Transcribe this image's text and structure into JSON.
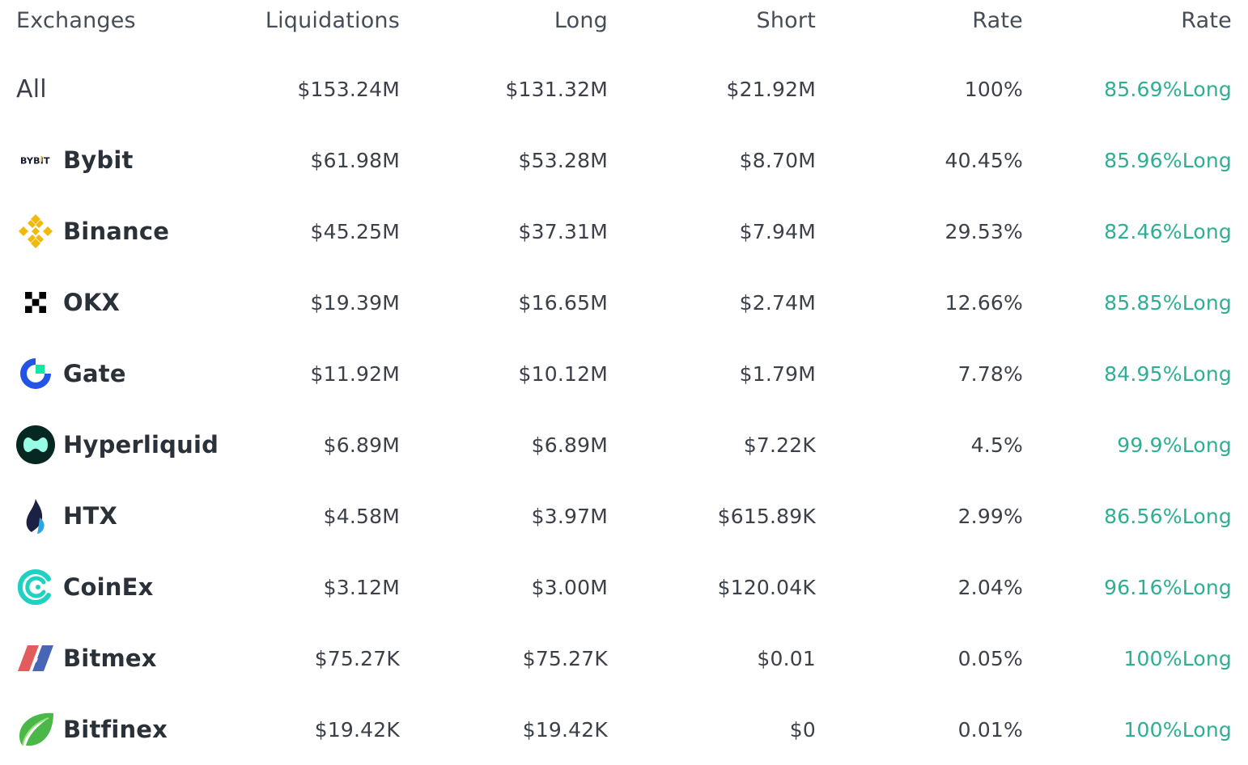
{
  "headers": {
    "exchanges": "Exchanges",
    "liquidations": "Liquidations",
    "long": "Long",
    "short": "Short",
    "rate": "Rate",
    "rate2": "Rate"
  },
  "all_row": {
    "name": "All",
    "liquidations": "$153.24M",
    "long": "$131.32M",
    "short": "$21.92M",
    "rate": "100%",
    "long_rate": "85.69%Long"
  },
  "rows": [
    {
      "name": "Bybit",
      "logo": "bybit-logo",
      "liquidations": "$61.98M",
      "long": "$53.28M",
      "short": "$8.70M",
      "rate": "40.45%",
      "long_rate": "85.96%Long",
      "logo_text": "BYBIT"
    },
    {
      "name": "Binance",
      "logo": "binance-logo",
      "liquidations": "$45.25M",
      "long": "$37.31M",
      "short": "$7.94M",
      "rate": "29.53%",
      "long_rate": "82.46%Long"
    },
    {
      "name": "OKX",
      "logo": "okx-logo",
      "liquidations": "$19.39M",
      "long": "$16.65M",
      "short": "$2.74M",
      "rate": "12.66%",
      "long_rate": "85.85%Long"
    },
    {
      "name": "Gate",
      "logo": "gate-logo",
      "liquidations": "$11.92M",
      "long": "$10.12M",
      "short": "$1.79M",
      "rate": "7.78%",
      "long_rate": "84.95%Long"
    },
    {
      "name": "Hyperliquid",
      "logo": "hyperliquid-logo",
      "liquidations": "$6.89M",
      "long": "$6.89M",
      "short": "$7.22K",
      "rate": "4.5%",
      "long_rate": "99.9%Long"
    },
    {
      "name": "HTX",
      "logo": "htx-logo",
      "liquidations": "$4.58M",
      "long": "$3.97M",
      "short": "$615.89K",
      "rate": "2.99%",
      "long_rate": "86.56%Long"
    },
    {
      "name": "CoinEx",
      "logo": "coinex-logo",
      "liquidations": "$3.12M",
      "long": "$3.00M",
      "short": "$120.04K",
      "rate": "2.04%",
      "long_rate": "96.16%Long"
    },
    {
      "name": "Bitmex",
      "logo": "bitmex-logo",
      "liquidations": "$75.27K",
      "long": "$75.27K",
      "short": "$0.01",
      "rate": "0.05%",
      "long_rate": "100%Long"
    },
    {
      "name": "Bitfinex",
      "logo": "bitfinex-logo",
      "liquidations": "$19.42K",
      "long": "$19.42K",
      "short": "$0",
      "rate": "0.01%",
      "long_rate": "100%Long"
    }
  ],
  "colors": {
    "positive": "#2eae94",
    "text": "#2b3139",
    "muted": "#474d57"
  }
}
